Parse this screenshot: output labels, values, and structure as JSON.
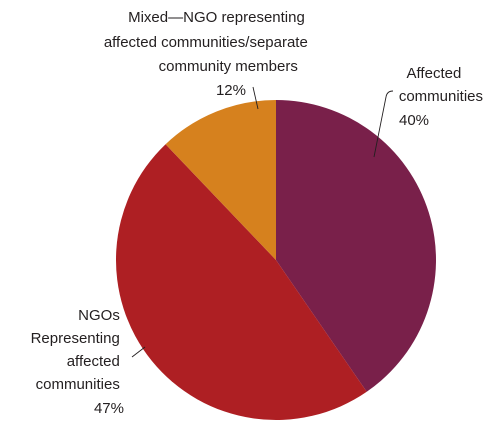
{
  "chart_data": {
    "type": "pie",
    "title": "",
    "slices": [
      {
        "name": "Affected communities",
        "value": 40,
        "color": "#79204a",
        "label_lines": [
          "Affected",
          "communities"
        ],
        "value_label": "40%"
      },
      {
        "name": "NGOs Representing affected communities",
        "value": 47,
        "color": "#ae1f23",
        "label_lines": [
          "NGOs",
          "Representing",
          "affected",
          "communities"
        ],
        "value_label": "47%"
      },
      {
        "name": "Mixed—NGO representing affected communities/separate community members",
        "value": 12,
        "color": "#d6811e",
        "label_lines": [
          "Mixed—NGO representing",
          "affected communities/separate",
          "community members"
        ],
        "value_label": "12%"
      }
    ],
    "start_angle": "12 o'clock",
    "direction": "clockwise",
    "legend": "none"
  }
}
